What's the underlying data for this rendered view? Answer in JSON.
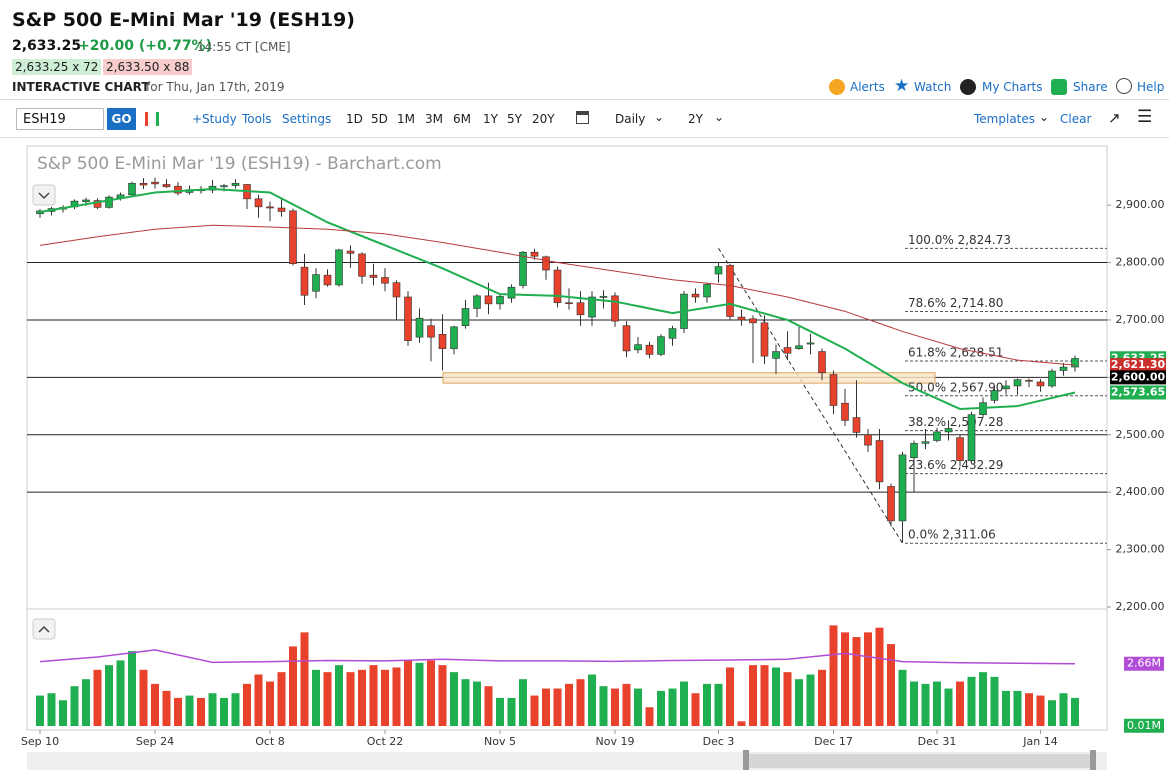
{
  "header": {
    "title": "S&P 500 E-Mini Mar '19 (ESH19)",
    "last": "2,633.25",
    "change": "+20.00 (+0.77%)",
    "time": "14:55 CT [CME]",
    "bid": "2,633.25 x 72",
    "ask": "2,633.50 x 88",
    "label": "INTERACTIVE CHART",
    "date": "for Thu, Jan 17th, 2019",
    "links": [
      "Alerts",
      "Watch",
      "My Charts",
      "Share",
      "Help"
    ]
  },
  "toolbar": {
    "symbol": "ESH19",
    "go": "GO",
    "study": "+Study",
    "tools": "Tools",
    "settings": "Settings",
    "ranges": [
      "1D",
      "5D",
      "1M",
      "3M",
      "6M",
      "1Y",
      "5Y",
      "20Y"
    ],
    "interval": "Daily",
    "period": "2Y",
    "templates": "Templates",
    "clear": "Clear"
  },
  "chart_data": {
    "type": "candlestick",
    "title": "S&P 500 E-Mini Mar '19 (ESH19) - Barchart.com",
    "categories": [
      "Sep 10",
      null,
      null,
      null,
      null,
      null,
      null,
      null,
      null,
      null,
      "Sep 24",
      null,
      null,
      null,
      null,
      null,
      null,
      null,
      null,
      null,
      "Oct 8",
      null,
      null,
      null,
      null,
      null,
      null,
      null,
      null,
      null,
      "Oct 22",
      null,
      null,
      null,
      null,
      null,
      null,
      null,
      null,
      null,
      "Nov 5",
      null,
      null,
      null,
      null,
      null,
      null,
      null,
      null,
      null,
      "Nov 19",
      null,
      null,
      null,
      null,
      null,
      null,
      null,
      null,
      "Dec 3",
      null,
      null,
      null,
      null,
      null,
      null,
      null,
      null,
      null,
      "Dec 17",
      null,
      null,
      null,
      null,
      null,
      null,
      null,
      null,
      "Dec 31",
      null,
      null,
      null,
      null,
      null,
      null,
      null,
      null,
      "Jan 14",
      null,
      null,
      null
    ],
    "open": [
      2885,
      2889,
      2893,
      2897,
      2906,
      2908,
      2896,
      2913,
      2918,
      2938,
      2940,
      2936,
      2933,
      2922,
      2927,
      2926,
      2932,
      2934,
      2936,
      2911,
      2897,
      2895,
      2890,
      2792,
      2750,
      2778,
      2761,
      2820,
      2815,
      2778,
      2774,
      2765,
      2740,
      2670,
      2690,
      2675,
      2650,
      2690,
      2720,
      2742,
      2728,
      2738,
      2760,
      2818,
      2810,
      2787,
      2730,
      2730,
      2705,
      2740,
      2742,
      2690,
      2648,
      2656,
      2640,
      2668,
      2685,
      2745,
      2740,
      2780,
      2795,
      2705,
      2702,
      2695,
      2633,
      2652,
      2650,
      2658,
      2645,
      2605,
      2555,
      2530,
      2500,
      2490,
      2410,
      2350,
      2460,
      2485,
      2490,
      2505,
      2495,
      2455,
      2535,
      2560,
      2580,
      2585,
      2595,
      2592,
      2585,
      2612,
      2618
    ],
    "high": [
      2893,
      2897,
      2900,
      2910,
      2913,
      2912,
      2917,
      2922,
      2941,
      2947,
      2948,
      2945,
      2940,
      2934,
      2933,
      2944,
      2937,
      2945,
      2937,
      2918,
      2906,
      2910,
      2894,
      2815,
      2790,
      2788,
      2824,
      2830,
      2818,
      2798,
      2790,
      2769,
      2750,
      2720,
      2702,
      2710,
      2690,
      2735,
      2745,
      2765,
      2747,
      2762,
      2820,
      2824,
      2812,
      2793,
      2755,
      2750,
      2750,
      2752,
      2748,
      2698,
      2670,
      2662,
      2675,
      2690,
      2750,
      2755,
      2765,
      2800,
      2798,
      2718,
      2708,
      2708,
      2657,
      2680,
      2688,
      2676,
      2650,
      2612,
      2580,
      2595,
      2510,
      2510,
      2415,
      2470,
      2490,
      2510,
      2512,
      2525,
      2500,
      2540,
      2565,
      2583,
      2595,
      2598,
      2598,
      2597,
      2615,
      2625,
      2638
    ],
    "low": [
      2878,
      2882,
      2887,
      2893,
      2899,
      2893,
      2894,
      2908,
      2916,
      2928,
      2929,
      2930,
      2917,
      2918,
      2920,
      2921,
      2924,
      2929,
      2893,
      2878,
      2872,
      2880,
      2795,
      2726,
      2738,
      2758,
      2758,
      2791,
      2763,
      2760,
      2750,
      2700,
      2655,
      2660,
      2628,
      2612,
      2640,
      2685,
      2705,
      2710,
      2718,
      2730,
      2755,
      2805,
      2770,
      2722,
      2718,
      2690,
      2690,
      2720,
      2688,
      2635,
      2642,
      2633,
      2637,
      2655,
      2677,
      2730,
      2730,
      2765,
      2700,
      2690,
      2625,
      2623,
      2606,
      2630,
      2648,
      2640,
      2595,
      2536,
      2515,
      2495,
      2470,
      2405,
      2340,
      2312,
      2400,
      2475,
      2487,
      2490,
      2445,
      2450,
      2530,
      2555,
      2570,
      2570,
      2583,
      2575,
      2582,
      2603,
      2610
    ],
    "close": [
      2890,
      2894,
      2896,
      2907,
      2909,
      2896,
      2914,
      2918,
      2938,
      2935,
      2937,
      2932,
      2921,
      2927,
      2925,
      2933,
      2934,
      2938,
      2911,
      2897,
      2895,
      2889,
      2798,
      2743,
      2779,
      2761,
      2822,
      2816,
      2776,
      2774,
      2764,
      2740,
      2664,
      2703,
      2670,
      2650,
      2688,
      2720,
      2742,
      2728,
      2741,
      2757,
      2818,
      2811,
      2787,
      2730,
      2729,
      2709,
      2740,
      2741,
      2698,
      2646,
      2657,
      2640,
      2671,
      2685,
      2745,
      2740,
      2762,
      2793,
      2706,
      2700,
      2695,
      2637,
      2645,
      2642,
      2655,
      2660,
      2608,
      2551,
      2525,
      2504,
      2482,
      2418,
      2350,
      2465,
      2485,
      2488,
      2505,
      2511,
      2455,
      2535,
      2556,
      2577,
      2585,
      2596,
      2594,
      2585,
      2611,
      2618,
      2633
    ],
    "up_color": "#1fae50",
    "down_color": "#e8412c",
    "ylim": [
      2200,
      3003
    ],
    "yticks": [
      {
        "value": 2200,
        "label": "2,200.00"
      },
      {
        "value": 2300,
        "label": "2,300.00"
      },
      {
        "value": 2400,
        "label": "2,400.00"
      },
      {
        "value": 2500,
        "label": "2,500.00"
      },
      {
        "value": 2600,
        "label": "2,600.00"
      },
      {
        "value": 2700,
        "label": "2,700.00"
      },
      {
        "value": 2800,
        "label": "2,800.00"
      },
      {
        "value": 2900,
        "label": "2,900.00"
      }
    ],
    "horizontal_lines": [
      2800,
      2700,
      2600,
      2500,
      2400
    ],
    "support_zone": [
      2590,
      2608
    ],
    "fib_levels": [
      {
        "value": 2824.73,
        "label": "100.0% 2,824.73"
      },
      {
        "value": 2714.8,
        "label": "78.6% 2,714.80"
      },
      {
        "value": 2628.51,
        "label": "61.8% 2,628.51"
      },
      {
        "value": 2567.9,
        "label": "50.0% 2,567.90"
      },
      {
        "value": 2507.28,
        "label": "38.2% 2,507.28"
      },
      {
        "value": 2432.29,
        "label": "23.6% 2,432.29"
      },
      {
        "value": 2311.06,
        "label": "0.0% 2,311.06"
      }
    ],
    "moving_averages": [
      {
        "color": "#1fae50",
        "x": [
          0,
          5,
          10,
          15,
          20,
          25,
          30,
          35,
          40,
          45,
          50,
          55,
          60,
          65,
          70,
          75,
          80,
          85,
          90
        ],
        "values": [
          2888,
          2905,
          2922,
          2928,
          2922,
          2870,
          2830,
          2790,
          2745,
          2742,
          2732,
          2712,
          2728,
          2700,
          2650,
          2590,
          2545,
          2550,
          2573.65
        ]
      },
      {
        "color": "#b83a3a",
        "x": [
          0,
          5,
          10,
          15,
          20,
          25,
          30,
          35,
          40,
          45,
          50,
          55,
          60,
          65,
          70,
          75,
          80,
          85,
          90
        ],
        "values": [
          2830,
          2845,
          2858,
          2865,
          2862,
          2858,
          2850,
          2835,
          2818,
          2800,
          2785,
          2770,
          2760,
          2740,
          2715,
          2680,
          2650,
          2630,
          2621.3
        ]
      }
    ],
    "price_tags": [
      {
        "value": 2633.25,
        "label": "2,633.25",
        "color": "#1fae50"
      },
      {
        "value": 2621.3,
        "label": "2,621.30",
        "color": "#c9302c"
      },
      {
        "value": 2600,
        "label": "2,600.00",
        "color": "#000000"
      },
      {
        "value": 2573.65,
        "label": "2,573.65",
        "color": "#1fae50"
      }
    ],
    "volume": {
      "values": [
        1.3,
        1.4,
        1.1,
        1.7,
        2.0,
        2.4,
        2.6,
        2.8,
        3.2,
        2.4,
        1.8,
        1.5,
        1.2,
        1.3,
        1.2,
        1.4,
        1.2,
        1.4,
        1.8,
        2.2,
        1.9,
        2.3,
        3.4,
        4.0,
        2.4,
        2.3,
        2.6,
        2.3,
        2.4,
        2.6,
        2.4,
        2.5,
        2.8,
        2.7,
        2.8,
        2.6,
        2.3,
        2.0,
        1.9,
        1.7,
        1.2,
        1.2,
        2.0,
        1.3,
        1.6,
        1.6,
        1.8,
        2.0,
        2.2,
        1.7,
        1.6,
        1.8,
        1.6,
        0.8,
        1.5,
        1.6,
        1.9,
        1.4,
        1.8,
        1.8,
        2.5,
        0.2,
        2.6,
        2.6,
        2.5,
        2.3,
        2.0,
        2.2,
        2.4,
        4.3,
        4.0,
        3.8,
        4.0,
        4.2,
        3.5,
        2.4,
        1.9,
        1.8,
        1.9,
        1.6,
        1.9,
        2.1,
        2.3,
        2.1,
        1.5,
        1.5,
        1.4,
        1.3,
        1.1,
        1.4,
        1.2
      ],
      "ylim": [
        0,
        4.87
      ],
      "ma": {
        "color": "#b04cd6",
        "x": [
          0,
          5,
          10,
          15,
          20,
          25,
          30,
          35,
          40,
          45,
          50,
          55,
          60,
          65,
          70,
          75,
          80,
          85,
          90
        ],
        "values": [
          2.75,
          2.95,
          3.25,
          2.72,
          2.75,
          2.8,
          2.78,
          2.85,
          2.78,
          2.78,
          2.76,
          2.8,
          2.82,
          2.85,
          3.1,
          2.75,
          2.7,
          2.68,
          2.66
        ]
      },
      "tags": [
        {
          "value": 2.66,
          "label": "2.66M",
          "color": "#b04cd6"
        },
        {
          "value": 0.01,
          "label": "0.01M",
          "color": "#1fae50"
        }
      ]
    }
  }
}
